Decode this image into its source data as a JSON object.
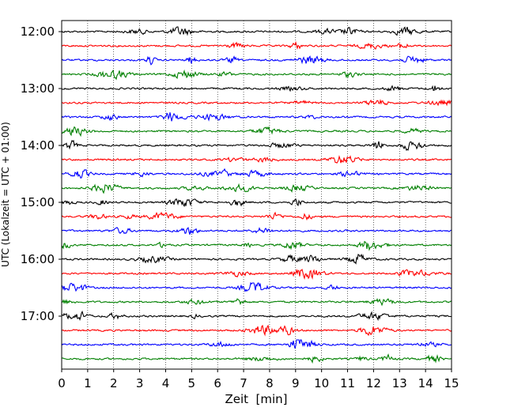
{
  "chart_data": {
    "type": "line",
    "title": "",
    "xlabel": "Zeit  [min]",
    "ylabel": "UTC (Lokalzeit = UTC + 01:00)",
    "xlim": [
      0,
      15
    ],
    "x_ticks": [
      0,
      1,
      2,
      3,
      4,
      5,
      6,
      7,
      8,
      9,
      10,
      11,
      12,
      13,
      14,
      15
    ],
    "y_tick_labels": [
      "12:00",
      "13:00",
      "14:00",
      "15:00",
      "16:00",
      "17:00"
    ],
    "trace_start_times": [
      "12:00",
      "12:15",
      "12:30",
      "12:45",
      "13:00",
      "13:15",
      "13:30",
      "13:45",
      "14:00",
      "14:15",
      "14:30",
      "14:45",
      "15:00",
      "15:15",
      "15:30",
      "15:45",
      "16:00",
      "16:15",
      "16:30",
      "16:45",
      "17:00",
      "17:15",
      "17:30",
      "17:45"
    ],
    "trace_colors": [
      "#000000",
      "#ff0000",
      "#0000ff",
      "#008000"
    ],
    "grid": "vertical-dotted",
    "legend": "none"
  }
}
